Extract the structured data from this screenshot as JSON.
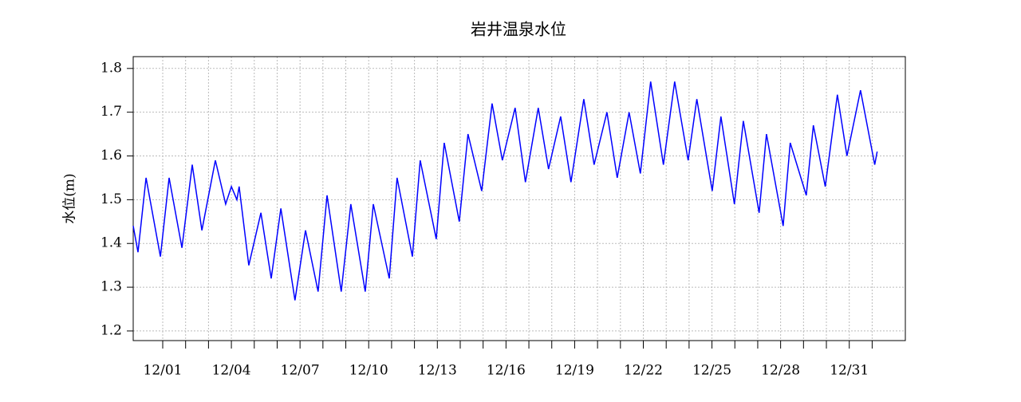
{
  "chart_data": {
    "type": "line",
    "title": "岩井温泉水位",
    "y_label": "水位(m)",
    "x": [
      -0.29,
      -0.08,
      0.27,
      0.9,
      1.28,
      1.84,
      2.29,
      2.71,
      3.3,
      3.75,
      4.0,
      4.24,
      4.34,
      4.76,
      5.29,
      5.74,
      6.16,
      6.78,
      7.24,
      7.79,
      8.18,
      8.8,
      9.22,
      9.85,
      10.2,
      10.9,
      11.24,
      11.91,
      12.25,
      12.95,
      13.3,
      13.96,
      14.34,
      14.94,
      15.39,
      15.84,
      16.4,
      16.85,
      17.41,
      17.86,
      18.39,
      18.84,
      19.4,
      19.85,
      20.41,
      20.86,
      21.38,
      21.87,
      22.32,
      22.88,
      23.37,
      23.96,
      24.34,
      25.01,
      25.39,
      25.98,
      26.37,
      27.06,
      27.38,
      28.11,
      28.42,
      29.12,
      29.43,
      29.95,
      30.48,
      30.9,
      31.49,
      32.11,
      32.22
    ],
    "values": [
      1.44,
      1.38,
      1.55,
      1.37,
      1.55,
      1.39,
      1.58,
      1.43,
      1.59,
      1.49,
      1.53,
      1.5,
      1.53,
      1.35,
      1.47,
      1.32,
      1.48,
      1.27,
      1.43,
      1.29,
      1.51,
      1.29,
      1.49,
      1.29,
      1.49,
      1.32,
      1.55,
      1.37,
      1.59,
      1.41,
      1.63,
      1.45,
      1.65,
      1.52,
      1.72,
      1.59,
      1.71,
      1.54,
      1.71,
      1.57,
      1.69,
      1.54,
      1.73,
      1.58,
      1.7,
      1.55,
      1.7,
      1.56,
      1.77,
      1.58,
      1.77,
      1.59,
      1.73,
      1.52,
      1.69,
      1.49,
      1.68,
      1.47,
      1.65,
      1.44,
      1.63,
      1.51,
      1.67,
      1.53,
      1.74,
      1.6,
      1.75,
      1.58,
      1.61
    ],
    "color": "#0000ff",
    "xlim": [
      -0.29,
      33.45
    ],
    "xticks": [
      {
        "value": 1,
        "label": "12/01"
      },
      {
        "value": 4,
        "label": "12/04"
      },
      {
        "value": 7,
        "label": "12/07"
      },
      {
        "value": 10,
        "label": "12/10"
      },
      {
        "value": 13,
        "label": "12/13"
      },
      {
        "value": 16,
        "label": "12/16"
      },
      {
        "value": 19,
        "label": "12/19"
      },
      {
        "value": 22,
        "label": "12/22"
      },
      {
        "value": 25,
        "label": "12/25"
      },
      {
        "value": 28,
        "label": "12/28"
      },
      {
        "value": 31,
        "label": "12/31"
      }
    ],
    "x_minor_ticks": [
      2,
      3,
      5,
      6,
      8,
      9,
      11,
      12,
      14,
      15,
      17,
      18,
      20,
      21,
      23,
      24,
      26,
      27,
      29,
      30,
      32
    ],
    "ylim": [
      1.178,
      1.827
    ],
    "yticks": [
      1.2,
      1.3,
      1.4,
      1.5,
      1.6,
      1.7,
      1.8
    ],
    "grid": true
  }
}
